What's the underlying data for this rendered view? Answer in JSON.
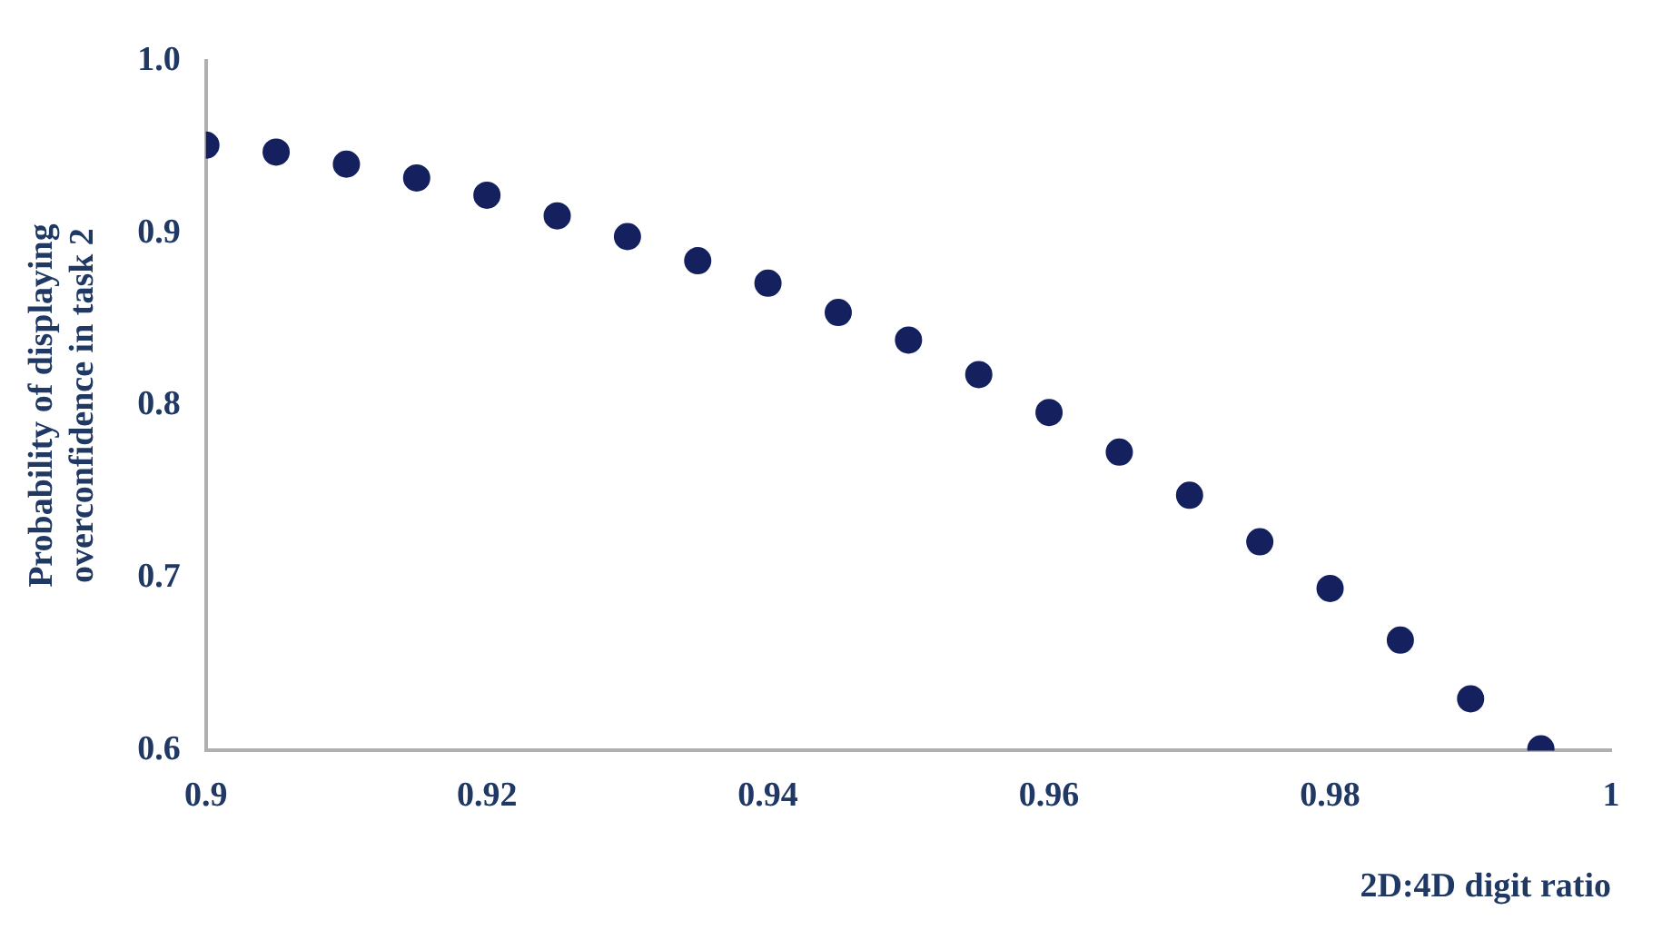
{
  "chart_data": {
    "type": "scatter",
    "xlabel": "2D:4D digit ratio",
    "ylabel": "Probability of displaying overconfidence in task 2",
    "x": [
      0.9,
      0.905,
      0.91,
      0.915,
      0.92,
      0.925,
      0.93,
      0.935,
      0.94,
      0.945,
      0.95,
      0.955,
      0.96,
      0.965,
      0.97,
      0.975,
      0.98,
      0.985,
      0.99,
      0.995
    ],
    "series": [
      {
        "color": "#14215e",
        "values": [
          0.951,
          0.947,
          0.94,
          0.932,
          0.922,
          0.91,
          0.898,
          0.884,
          0.871,
          0.854,
          0.838,
          0.818,
          0.796,
          0.773,
          0.748,
          0.721,
          0.694,
          0.664,
          0.63,
          0.601
        ]
      }
    ],
    "xlim": [
      0.9,
      1
    ],
    "xticks": [
      0.9,
      0.92,
      0.94,
      0.96,
      0.98,
      1
    ],
    "ylim": [
      0.6,
      1
    ],
    "yticks": [
      0.6,
      0.7,
      0.8,
      0.9,
      {
        "value": 1,
        "label": "1.0"
      }
    ],
    "grid": false,
    "legend": false,
    "marker": "circle"
  }
}
